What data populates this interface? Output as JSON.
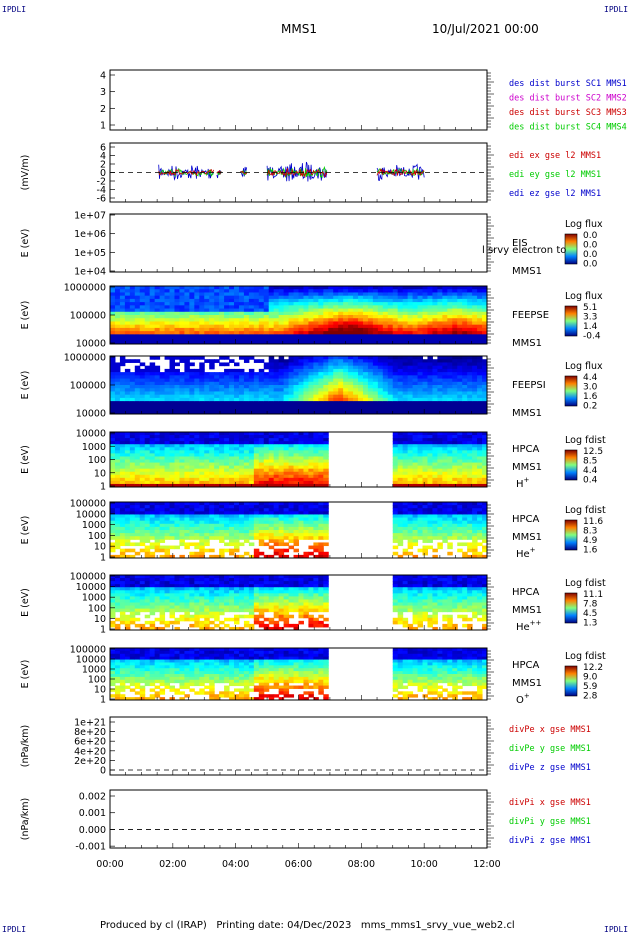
{
  "header": {
    "corner_label": "IPDLI",
    "title": "MMS1",
    "date": "10/Jul/2021 00:00"
  },
  "footer": {
    "produced_by": "Produced by cl (IRAP)",
    "printing_date": "Printing date: 04/Dec/2023",
    "script": "mms_mms1_srvy_vue_web2.cl"
  },
  "colors": {
    "blue": "#0000cc",
    "magenta": "#cc00cc",
    "red": "#cc0000",
    "green": "#00cc00"
  },
  "chart_data": {
    "type": "line",
    "x_ticks": [
      "00:00",
      "02:00",
      "04:00",
      "06:00",
      "08:00",
      "10:00",
      "12:00"
    ],
    "xlim_hours": [
      0,
      12
    ],
    "panels": [
      {
        "id": "des-dist",
        "kind": "line",
        "ylabel": "",
        "yticks": [
          "1",
          "2",
          "3",
          "4"
        ],
        "legend": [
          {
            "text": "des dist burst SC1 MMS1",
            "color": "blue"
          },
          {
            "text": "des dist burst SC2 MMS2",
            "color": "magenta"
          },
          {
            "text": "des dist burst SC3 MMS3",
            "color": "red"
          },
          {
            "text": "des dist burst SC4 MMS4",
            "color": "green"
          }
        ]
      },
      {
        "id": "edi-e",
        "kind": "line",
        "ylabel": "(mV/m)",
        "yticks": [
          "-6",
          "-4",
          "-2",
          "0",
          "2",
          "4",
          "6"
        ],
        "ylim": [
          -6,
          6
        ],
        "legend": [
          {
            "text": "edi ex gse l2 MMS1",
            "color": "red"
          },
          {
            "text": "edi ey gse l2 MMS1",
            "color": "green"
          },
          {
            "text": "edi ez gse l2 MMS1",
            "color": "blue"
          }
        ]
      },
      {
        "id": "eis",
        "kind": "spectrogram",
        "ylabel": "E (eV)",
        "yticks": [
          "1e+04",
          "1e+05",
          "1e+06",
          "1e+07"
        ],
        "labels": [
          "EIS",
          "MMS1"
        ],
        "overlay_text": "l srvy electron to",
        "colorbar": {
          "title": "Log flux",
          "values": [
            "0.0",
            "0.0",
            "0.0",
            "0.0"
          ]
        }
      },
      {
        "id": "feepse",
        "kind": "spectrogram",
        "ylabel": "E (eV)",
        "yticks": [
          "10000",
          "100000",
          "1000000"
        ],
        "labels": [
          "FEEPSE",
          "MMS1"
        ],
        "colorbar": {
          "title": "Log flux",
          "values": [
            "5.1",
            "3.3",
            "1.4",
            "-0.4"
          ]
        }
      },
      {
        "id": "feepsi",
        "kind": "spectrogram",
        "ylabel": "E (eV)",
        "yticks": [
          "10000",
          "100000",
          "1000000"
        ],
        "labels": [
          "FEEPSI",
          "MMS1"
        ],
        "colorbar": {
          "title": "Log flux",
          "values": [
            "4.4",
            "3.0",
            "1.6",
            "0.2"
          ]
        }
      },
      {
        "id": "hpca-h",
        "kind": "spectrogram",
        "ylabel": "E (eV)",
        "yticks": [
          "1",
          "10",
          "100",
          "1000",
          "10000"
        ],
        "labels": [
          "HPCA",
          "MMS1"
        ],
        "species": "H",
        "species_charge": "+",
        "data_gap_hours": [
          6.9,
          9.0
        ],
        "colorbar": {
          "title": "Log fdist",
          "values": [
            "12.5",
            "8.5",
            "4.4",
            "0.4"
          ]
        }
      },
      {
        "id": "hpca-he",
        "kind": "spectrogram",
        "ylabel": "E (eV)",
        "yticks": [
          "1",
          "10",
          "100",
          "1000",
          "10000",
          "100000"
        ],
        "labels": [
          "HPCA",
          "MMS1"
        ],
        "species": "He",
        "species_charge": "+",
        "data_gap_hours": [
          6.9,
          9.0
        ],
        "colorbar": {
          "title": "Log fdist",
          "values": [
            "11.6",
            "8.3",
            "4.9",
            "1.6"
          ]
        }
      },
      {
        "id": "hpca-hepp",
        "kind": "spectrogram",
        "ylabel": "E (eV)",
        "yticks": [
          "1",
          "10",
          "100",
          "1000",
          "10000",
          "100000"
        ],
        "labels": [
          "HPCA",
          "MMS1"
        ],
        "species": "He",
        "species_charge": "++",
        "data_gap_hours": [
          6.9,
          9.0
        ],
        "colorbar": {
          "title": "Log fdist",
          "values": [
            "11.1",
            "7.8",
            "4.5",
            "1.3"
          ]
        }
      },
      {
        "id": "hpca-o",
        "kind": "spectrogram",
        "ylabel": "E (eV)",
        "yticks": [
          "1",
          "10",
          "100",
          "1000",
          "10000",
          "100000"
        ],
        "labels": [
          "HPCA",
          "MMS1"
        ],
        "species": "O",
        "species_charge": "+",
        "data_gap_hours": [
          6.9,
          9.0
        ],
        "colorbar": {
          "title": "Log fdist",
          "values": [
            "12.2",
            "9.0",
            "5.9",
            "2.8"
          ]
        }
      },
      {
        "id": "divpe",
        "kind": "line",
        "ylabel": "(nPa/km)",
        "yticks": [
          "0",
          "2e+20",
          "4e+20",
          "6e+20",
          "8e+20",
          "1e+21"
        ],
        "legend": [
          {
            "text": "divPe x gse MMS1",
            "color": "red"
          },
          {
            "text": "divPe y gse MMS1",
            "color": "green"
          },
          {
            "text": "divPe z gse MMS1",
            "color": "blue"
          }
        ]
      },
      {
        "id": "divpi",
        "kind": "line",
        "ylabel": "(nPa/km)",
        "yticks": [
          "-0.001",
          "0.000",
          "0.001",
          "0.002"
        ],
        "legend": [
          {
            "text": "divPi x gse MMS1",
            "color": "red"
          },
          {
            "text": "divPi y gse MMS1",
            "color": "green"
          },
          {
            "text": "divPi z gse MMS1",
            "color": "blue"
          }
        ]
      }
    ]
  }
}
